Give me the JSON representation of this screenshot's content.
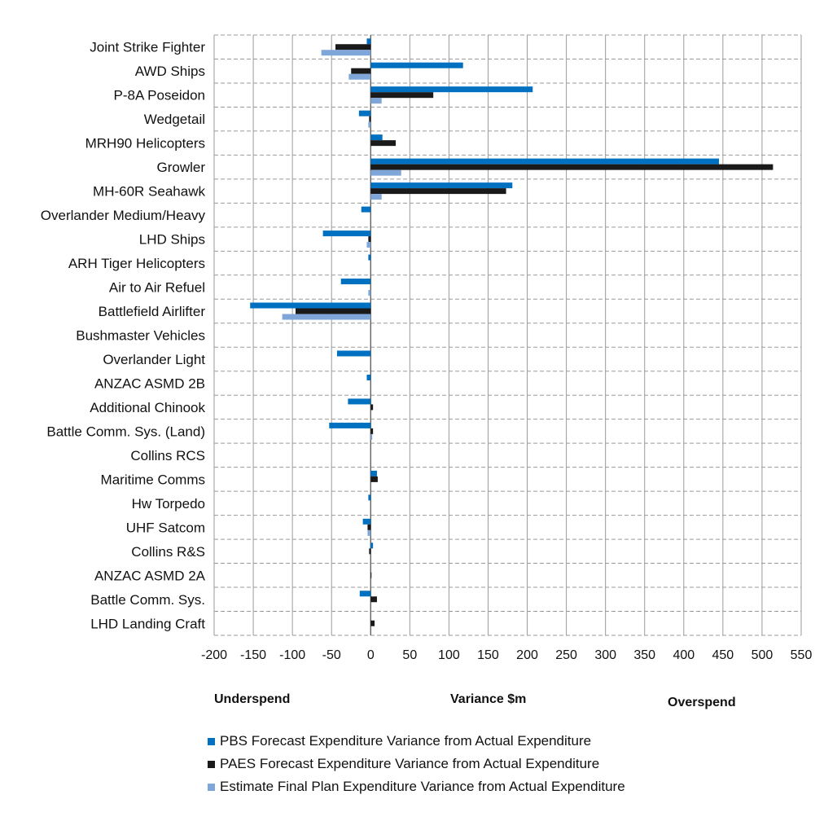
{
  "chart_data": {
    "type": "bar",
    "orientation": "horizontal",
    "categories": [
      "Joint Strike Fighter",
      "AWD Ships",
      "P-8A Poseidon",
      "Wedgetail",
      "MRH90 Helicopters",
      "Growler",
      "MH-60R Seahawk",
      "Overlander Medium/Heavy",
      "LHD Ships",
      "ARH Tiger Helicopters",
      "Air to Air Refuel",
      "Battlefield Airlifter",
      "Bushmaster Vehicles",
      "Overlander Light",
      "ANZAC ASMD 2B",
      "Additional Chinook",
      "Battle Comm. Sys. (Land)",
      "Collins RCS",
      "Maritime Comms",
      "Hw Torpedo",
      "UHF Satcom",
      "Collins R&S",
      "ANZAC ASMD 2A",
      "Battle Comm. Sys.",
      "LHD Landing Craft"
    ],
    "series": [
      {
        "name": "PBS Forecast Expenditure Variance from Actual Expenditure",
        "color": "#0070c0",
        "values": [
          -5,
          118,
          207,
          -15,
          15,
          445,
          181,
          -12,
          -61,
          -3,
          -38,
          -154,
          0,
          -43,
          -5,
          -29,
          -53,
          0,
          8,
          -3,
          -10,
          3,
          0,
          -14,
          0
        ]
      },
      {
        "name": "PAES Forecast Expenditure Variance from Actual Expenditure",
        "color": "#1a1a1a",
        "values": [
          -45,
          -25,
          80,
          -2,
          32,
          514,
          173,
          0,
          -3,
          0,
          0,
          -96,
          0,
          0,
          0,
          3,
          3,
          0,
          9,
          0,
          -4,
          -2,
          1,
          8,
          5
        ]
      },
      {
        "name": "Estimate Final Plan Expenditure Variance from Actual Expenditure",
        "color": "#7fa6d8",
        "values": [
          -63,
          -28,
          14,
          -3,
          0,
          39,
          14,
          0,
          -5,
          0,
          -3,
          -113,
          0,
          0,
          0,
          0,
          2,
          0,
          0,
          0,
          -4,
          0,
          0,
          0,
          0
        ]
      }
    ],
    "x_ticks": [
      "-200",
      "-150",
      "-100",
      "-50",
      "0",
      "50",
      "100",
      "150",
      "200",
      "250",
      "300",
      "350",
      "400",
      "450",
      "500",
      "550"
    ],
    "xlim": [
      -200,
      550
    ],
    "xlabel": "Variance $m",
    "annotations": {
      "left": "Underspend",
      "right": "Overspend"
    },
    "grid": true,
    "legend_position": "bottom"
  }
}
